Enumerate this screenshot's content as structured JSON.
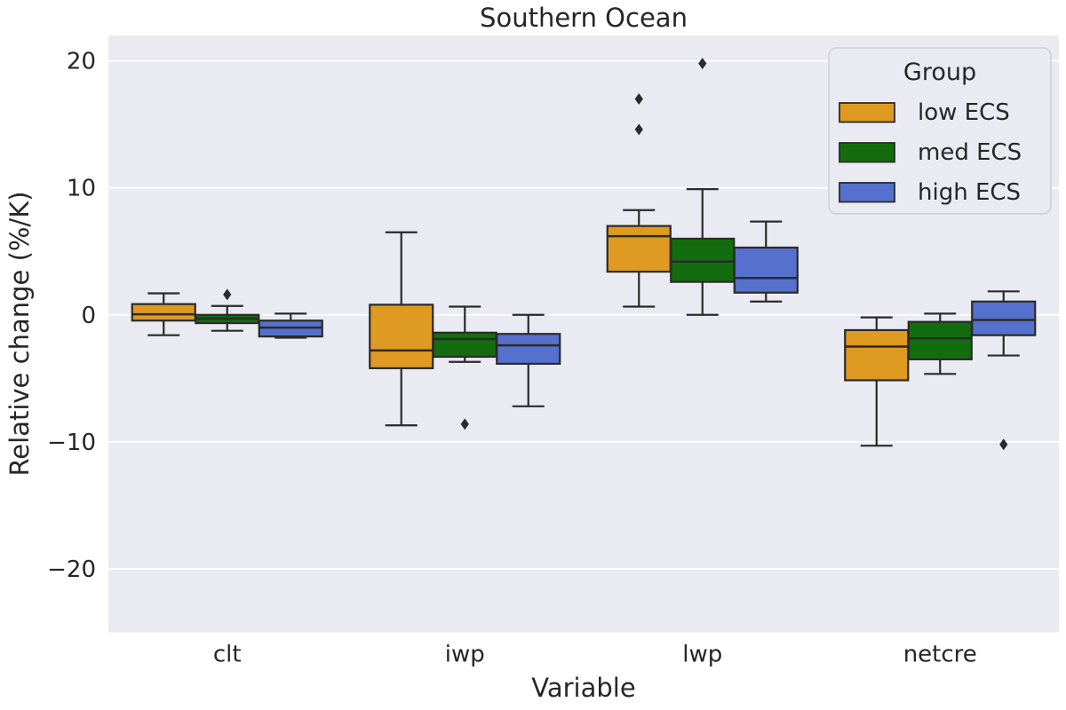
{
  "style": {
    "plot_bg": "#eaeaf2",
    "grid_color": "#ffffff",
    "text_color": "#262626",
    "box_edge_color": "#2a2a2a",
    "outlier_color": "#2b2b2b",
    "legend_border_color": "#cdcdd4",
    "legend_bg": "#eaeaf2"
  },
  "chart_data": {
    "type": "boxplot",
    "title": "Southern Ocean",
    "xlabel": "Variable",
    "ylabel": "Relative change (%/K)",
    "categories": [
      "clt",
      "iwp",
      "lwp",
      "netcre"
    ],
    "ylim": [
      -25,
      22
    ],
    "yticks": [
      20,
      10,
      0,
      -10,
      -20
    ],
    "grid": true,
    "legend": {
      "title": "Group",
      "position": "upper right",
      "entries": [
        "low ECS",
        "med ECS",
        "high ECS"
      ]
    },
    "series": [
      {
        "name": "low ECS",
        "color": "#de9a21",
        "boxes": [
          {
            "category": "clt",
            "whislo": -1.6,
            "q1": -0.45,
            "med": 0.05,
            "q3": 0.85,
            "whishi": 1.7,
            "outliers": []
          },
          {
            "category": "iwp",
            "whislo": -8.7,
            "q1": -4.2,
            "med": -2.8,
            "q3": 0.8,
            "whishi": 6.5,
            "outliers": []
          },
          {
            "category": "lwp",
            "whislo": 0.65,
            "q1": 3.4,
            "med": 6.2,
            "q3": 7.0,
            "whishi": 8.25,
            "outliers": [
              14.6,
              17.0
            ]
          },
          {
            "category": "netcre",
            "whislo": -10.3,
            "q1": -5.15,
            "med": -2.5,
            "q3": -1.2,
            "whishi": -0.2,
            "outliers": []
          }
        ]
      },
      {
        "name": "med ECS",
        "color": "#136d0e",
        "boxes": [
          {
            "category": "clt",
            "whislo": -1.25,
            "q1": -0.65,
            "med": -0.3,
            "q3": 0.0,
            "whishi": 0.7,
            "outliers": [
              1.6
            ]
          },
          {
            "category": "iwp",
            "whislo": -3.7,
            "q1": -3.3,
            "med": -1.9,
            "q3": -1.4,
            "whishi": 0.65,
            "outliers": [
              -8.6
            ]
          },
          {
            "category": "lwp",
            "whislo": 0.0,
            "q1": 2.6,
            "med": 4.2,
            "q3": 6.0,
            "whishi": 9.9,
            "outliers": [
              19.8
            ]
          },
          {
            "category": "netcre",
            "whislo": -4.65,
            "q1": -3.5,
            "med": -1.85,
            "q3": -0.55,
            "whishi": 0.1,
            "outliers": []
          }
        ]
      },
      {
        "name": "high ECS",
        "color": "#5571cd",
        "boxes": [
          {
            "category": "clt",
            "whislo": -1.8,
            "q1": -1.7,
            "med": -1.0,
            "q3": -0.45,
            "whishi": 0.1,
            "outliers": []
          },
          {
            "category": "iwp",
            "whislo": -7.2,
            "q1": -3.85,
            "med": -2.4,
            "q3": -1.5,
            "whishi": 0.0,
            "outliers": []
          },
          {
            "category": "lwp",
            "whislo": 1.05,
            "q1": 1.75,
            "med": 2.9,
            "q3": 5.3,
            "whishi": 7.35,
            "outliers": []
          },
          {
            "category": "netcre",
            "whislo": -3.2,
            "q1": -1.6,
            "med": -0.4,
            "q3": 1.05,
            "whishi": 1.85,
            "outliers": [
              -10.2
            ]
          }
        ]
      }
    ]
  }
}
